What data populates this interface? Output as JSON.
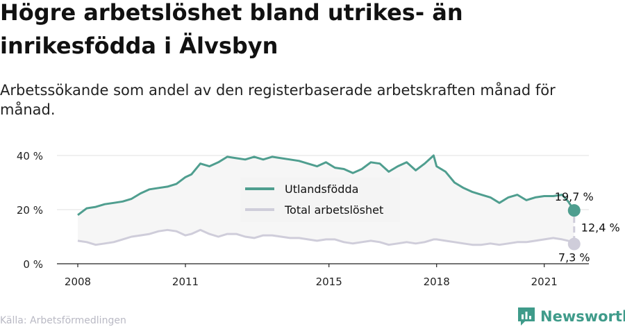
{
  "title": "Högre arbetslöshet bland utrikes- än inrikesfödda i Älvsbyn",
  "subtitle": "Arbetssökande som andel av den registerbaserade arbetskraften månad för månad.",
  "source": "Källa: Arbetsförmedlingen",
  "brand": "Newsworthy",
  "colors": {
    "foreign": "#4f9e8f",
    "total": "#cfcdda",
    "band": "#f6f6f6",
    "grid": "#e2e2e2",
    "axis": "#222222"
  },
  "chart_data": {
    "type": "line",
    "x_ticks": [
      "2008",
      "2011",
      "2015",
      "2018",
      "2021"
    ],
    "y_ticks": [
      "0 %",
      "20 %",
      "40 %"
    ],
    "ylim": [
      0,
      40
    ],
    "x_range": [
      "2008-01",
      "2021-11"
    ],
    "legend": [
      "Utlandsfödda",
      "Total arbetslöshet"
    ],
    "legend_position": "center",
    "end_labels": {
      "foreign": "19,7 %",
      "total": "7,3 %",
      "gap": "12,4 %"
    },
    "series": [
      {
        "name": "Utlandsfödda",
        "color": "#4f9e8f",
        "points": [
          [
            "2008-01",
            18
          ],
          [
            "2008-04",
            20.5
          ],
          [
            "2008-07",
            21
          ],
          [
            "2008-10",
            22
          ],
          [
            "2009-01",
            22.5
          ],
          [
            "2009-04",
            23
          ],
          [
            "2009-07",
            24
          ],
          [
            "2009-10",
            26
          ],
          [
            "2010-01",
            27.5
          ],
          [
            "2010-04",
            28
          ],
          [
            "2010-07",
            28.5
          ],
          [
            "2010-10",
            29.5
          ],
          [
            "2011-01",
            32
          ],
          [
            "2011-03",
            33
          ],
          [
            "2011-06",
            37
          ],
          [
            "2011-09",
            36
          ],
          [
            "2011-12",
            37.5
          ],
          [
            "2012-03",
            39.5
          ],
          [
            "2012-06",
            39
          ],
          [
            "2012-09",
            38.5
          ],
          [
            "2012-12",
            39.5
          ],
          [
            "2013-03",
            38.5
          ],
          [
            "2013-06",
            39.5
          ],
          [
            "2013-09",
            39
          ],
          [
            "2013-12",
            38.5
          ],
          [
            "2014-03",
            38
          ],
          [
            "2014-06",
            37
          ],
          [
            "2014-09",
            36
          ],
          [
            "2014-12",
            37.5
          ],
          [
            "2015-03",
            35.5
          ],
          [
            "2015-06",
            35
          ],
          [
            "2015-09",
            33.5
          ],
          [
            "2015-12",
            35
          ],
          [
            "2016-03",
            37.5
          ],
          [
            "2016-06",
            37
          ],
          [
            "2016-09",
            34
          ],
          [
            "2016-12",
            36
          ],
          [
            "2017-03",
            37.5
          ],
          [
            "2017-06",
            34.5
          ],
          [
            "2017-09",
            37
          ],
          [
            "2017-12",
            40
          ],
          [
            "2018-01",
            36
          ],
          [
            "2018-04",
            34
          ],
          [
            "2018-07",
            30
          ],
          [
            "2018-10",
            28
          ],
          [
            "2019-01",
            26.5
          ],
          [
            "2019-04",
            25.5
          ],
          [
            "2019-07",
            24.5
          ],
          [
            "2019-10",
            22.5
          ],
          [
            "2020-01",
            24.5
          ],
          [
            "2020-04",
            25.5
          ],
          [
            "2020-07",
            23.5
          ],
          [
            "2020-10",
            24.5
          ],
          [
            "2021-01",
            25
          ],
          [
            "2021-04",
            25
          ],
          [
            "2021-07",
            25.5
          ],
          [
            "2021-09",
            23
          ],
          [
            "2021-11",
            19.7
          ]
        ]
      },
      {
        "name": "Total arbetslöshet",
        "color": "#cfcdda",
        "points": [
          [
            "2008-01",
            8.5
          ],
          [
            "2008-04",
            8
          ],
          [
            "2008-07",
            7
          ],
          [
            "2008-10",
            7.5
          ],
          [
            "2009-01",
            8
          ],
          [
            "2009-04",
            9
          ],
          [
            "2009-07",
            10
          ],
          [
            "2009-10",
            10.5
          ],
          [
            "2010-01",
            11
          ],
          [
            "2010-04",
            12
          ],
          [
            "2010-07",
            12.5
          ],
          [
            "2010-10",
            12
          ],
          [
            "2011-01",
            10.5
          ],
          [
            "2011-03",
            11
          ],
          [
            "2011-06",
            12.5
          ],
          [
            "2011-09",
            11
          ],
          [
            "2011-12",
            10
          ],
          [
            "2012-03",
            11
          ],
          [
            "2012-06",
            11
          ],
          [
            "2012-09",
            10
          ],
          [
            "2012-12",
            9.5
          ],
          [
            "2013-03",
            10.5
          ],
          [
            "2013-06",
            10.5
          ],
          [
            "2013-09",
            10
          ],
          [
            "2013-12",
            9.5
          ],
          [
            "2014-03",
            9.5
          ],
          [
            "2014-06",
            9
          ],
          [
            "2014-09",
            8.5
          ],
          [
            "2014-12",
            9
          ],
          [
            "2015-03",
            9
          ],
          [
            "2015-06",
            8
          ],
          [
            "2015-09",
            7.5
          ],
          [
            "2015-12",
            8
          ],
          [
            "2016-03",
            8.5
          ],
          [
            "2016-06",
            8
          ],
          [
            "2016-09",
            7
          ],
          [
            "2016-12",
            7.5
          ],
          [
            "2017-03",
            8
          ],
          [
            "2017-06",
            7.5
          ],
          [
            "2017-09",
            8
          ],
          [
            "2017-12",
            9
          ],
          [
            "2018-01",
            9
          ],
          [
            "2018-04",
            8.5
          ],
          [
            "2018-07",
            8
          ],
          [
            "2018-10",
            7.5
          ],
          [
            "2019-01",
            7
          ],
          [
            "2019-04",
            7
          ],
          [
            "2019-07",
            7.5
          ],
          [
            "2019-10",
            7
          ],
          [
            "2020-01",
            7.5
          ],
          [
            "2020-04",
            8
          ],
          [
            "2020-07",
            8
          ],
          [
            "2020-10",
            8.5
          ],
          [
            "2021-01",
            9
          ],
          [
            "2021-04",
            9.5
          ],
          [
            "2021-07",
            9
          ],
          [
            "2021-09",
            8.5
          ],
          [
            "2021-11",
            7.3
          ]
        ]
      }
    ]
  }
}
